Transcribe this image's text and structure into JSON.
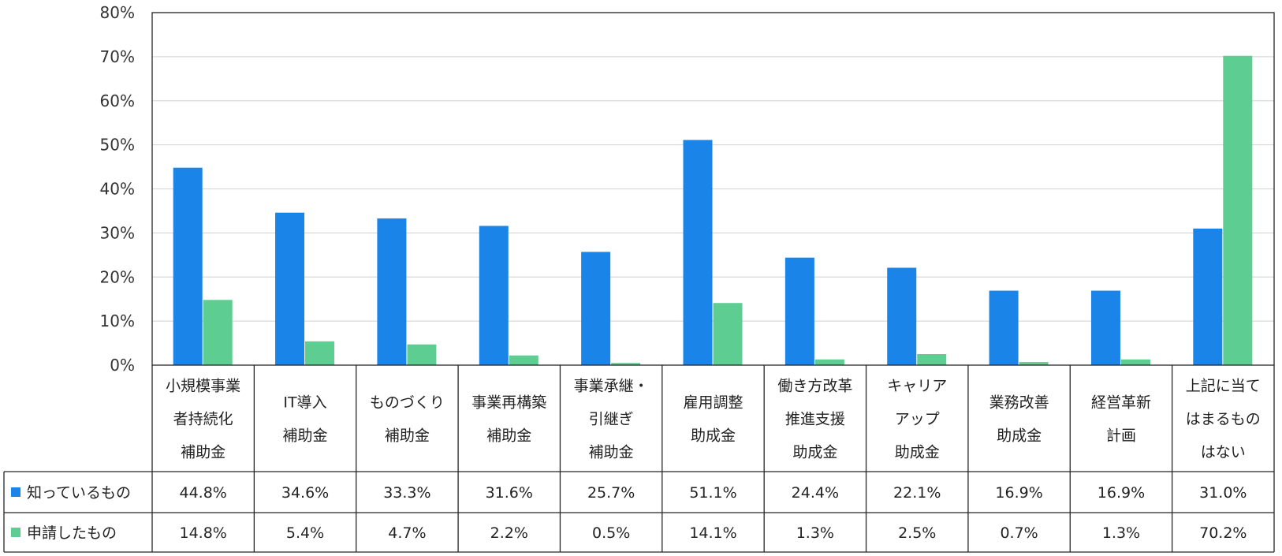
{
  "chart_data": {
    "type": "bar",
    "categories": [
      [
        "小規模事業",
        "者持続化",
        "補助金"
      ],
      [
        "IT導入",
        "補助金"
      ],
      [
        "ものづくり",
        "補助金"
      ],
      [
        "事業再構築",
        "補助金"
      ],
      [
        "事業承継・",
        "引継ぎ",
        "補助金"
      ],
      [
        "雇用調整",
        "助成金"
      ],
      [
        "働き方改革",
        "推進支援",
        "助成金"
      ],
      [
        "キャリア",
        "アップ",
        "助成金"
      ],
      [
        "業務改善",
        "助成金"
      ],
      [
        "経営革新",
        "計画"
      ],
      [
        "上記に当て",
        "はまるもの",
        "はない"
      ]
    ],
    "series": [
      {
        "name": "知っているもの",
        "color": "#1a84e8",
        "values": [
          44.8,
          34.6,
          33.3,
          31.6,
          25.7,
          51.1,
          24.4,
          22.1,
          16.9,
          16.9,
          31.0
        ],
        "labels": [
          "44.8%",
          "34.6%",
          "33.3%",
          "31.6%",
          "25.7%",
          "51.1%",
          "24.4%",
          "22.1%",
          "16.9%",
          "16.9%",
          "31.0%"
        ]
      },
      {
        "name": "申請したもの",
        "color": "#5dcd92",
        "values": [
          14.8,
          5.4,
          4.7,
          2.2,
          0.5,
          14.1,
          1.3,
          2.5,
          0.7,
          1.3,
          70.2
        ],
        "labels": [
          "14.8%",
          "5.4%",
          "4.7%",
          "2.2%",
          "0.5%",
          "14.1%",
          "1.3%",
          "2.5%",
          "0.7%",
          "1.3%",
          "70.2%"
        ]
      }
    ],
    "ylim": [
      0,
      80
    ],
    "yticks": [
      "0%",
      "10%",
      "20%",
      "30%",
      "40%",
      "50%",
      "60%",
      "70%",
      "80%"
    ],
    "grid": true,
    "legend": "data-table",
    "colors": {
      "grid": "#d9d9d9",
      "axis": "#262626",
      "table_border": "#262626"
    }
  }
}
